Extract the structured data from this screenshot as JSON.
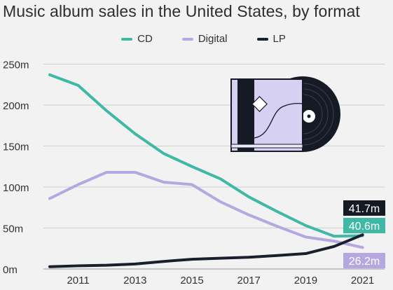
{
  "chart_data": {
    "type": "line",
    "title": "Music album sales in the United States, by format",
    "x": [
      2010,
      2011,
      2012,
      2013,
      2014,
      2015,
      2016,
      2017,
      2018,
      2019,
      2020,
      2021
    ],
    "x_ticks": [
      "2011",
      "2013",
      "2015",
      "2017",
      "2019",
      "2021"
    ],
    "y_ticks": [
      "0m",
      "50m",
      "100m",
      "150m",
      "200m",
      "250m"
    ],
    "ylim": [
      0,
      250
    ],
    "grid": true,
    "legend_position": "top-center",
    "series": [
      {
        "name": "CD",
        "color": "#3fb8a5",
        "values": [
          237,
          224,
          193,
          165,
          141,
          125,
          110,
          88,
          70,
          53,
          40,
          40.6
        ]
      },
      {
        "name": "Digital",
        "color": "#b5a8e0",
        "values": [
          86,
          103,
          118,
          118,
          106,
          103,
          82,
          66,
          52,
          39,
          34,
          26.2
        ]
      },
      {
        "name": "LP",
        "color": "#1a1f2e",
        "values": [
          2.8,
          3.9,
          4.6,
          6.1,
          9.2,
          11.9,
          13.1,
          14.3,
          16.5,
          18.8,
          27.5,
          41.7
        ]
      }
    ],
    "end_labels": [
      {
        "series": "LP",
        "text": "41.7m",
        "bg": "#151a24",
        "fg": "#ffffff"
      },
      {
        "series": "CD",
        "text": "40.6m",
        "bg": "#3fb8a5",
        "fg": "#ffffff"
      },
      {
        "series": "Digital",
        "text": "26.2m",
        "bg": "#b5a8e0",
        "fg": "#ffffff"
      }
    ]
  }
}
